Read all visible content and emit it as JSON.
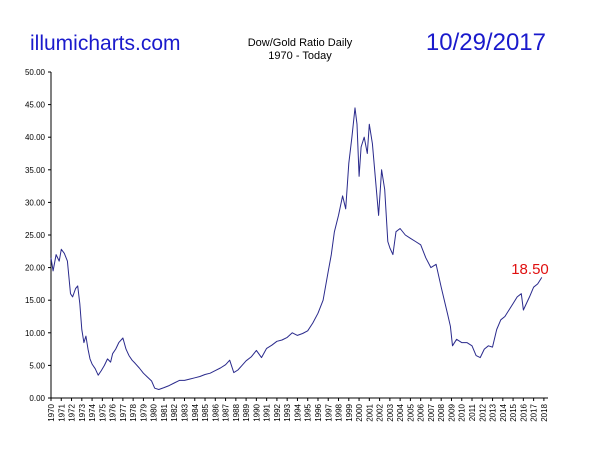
{
  "header": {
    "brand": "illumicharts.com",
    "date": "10/29/2017"
  },
  "chart_data": {
    "type": "line",
    "title": "Dow/Gold Ratio Daily",
    "subtitle": "1970 - Today",
    "xlabel": "",
    "ylabel": "",
    "xlim": [
      1970,
      2018.4
    ],
    "ylim": [
      0,
      50
    ],
    "grid": false,
    "y_ticks": [
      "0.00",
      "5.00",
      "10.00",
      "15.00",
      "20.00",
      "25.00",
      "30.00",
      "35.00",
      "40.00",
      "45.00",
      "50.00"
    ],
    "x_ticks": [
      "1970",
      "1971",
      "1972",
      "1973",
      "1974",
      "1975",
      "1976",
      "1977",
      "1978",
      "1979",
      "1980",
      "1981",
      "1982",
      "1983",
      "1984",
      "1985",
      "1986",
      "1987",
      "1988",
      "1989",
      "1990",
      "1991",
      "1992",
      "1993",
      "1994",
      "1995",
      "1996",
      "1997",
      "1998",
      "1999",
      "2000",
      "2001",
      "2002",
      "2003",
      "2004",
      "2005",
      "2006",
      "2007",
      "2008",
      "2009",
      "2010",
      "2011",
      "2012",
      "2013",
      "2014",
      "2015",
      "2016",
      "2017",
      "2018"
    ],
    "last_value_label": "18.50",
    "colors": {
      "series": "#2a2a8c",
      "annotation": "#e01010"
    },
    "series": [
      {
        "x": [
          1970.0,
          1970.2,
          1970.5,
          1970.8,
          1971.0,
          1971.3,
          1971.6,
          1971.9,
          1972.1,
          1972.4,
          1972.6,
          1972.8,
          1973.0,
          1973.2,
          1973.4,
          1973.6,
          1973.8,
          1974.0,
          1974.3,
          1974.6,
          1974.9,
          1975.2,
          1975.5,
          1975.8,
          1976.0,
          1976.3,
          1976.6,
          1977.0,
          1977.3,
          1977.6,
          1977.9,
          1978.2,
          1978.6,
          1979.0,
          1979.4,
          1979.8,
          1980.1,
          1980.5,
          1981.0,
          1981.5,
          1982.0,
          1982.5,
          1983.0,
          1983.5,
          1984.0,
          1984.5,
          1985.0,
          1985.5,
          1986.0,
          1986.5,
          1987.0,
          1987.4,
          1987.8,
          1988.2,
          1988.6,
          1989.0,
          1989.5,
          1990.0,
          1990.5,
          1991.0,
          1991.5,
          1992.0,
          1992.5,
          1993.0,
          1993.5,
          1994.0,
          1994.5,
          1995.0,
          1995.5,
          1996.0,
          1996.5,
          1997.0,
          1997.3,
          1997.6,
          1998.0,
          1998.4,
          1998.7,
          1999.0,
          1999.3,
          1999.6,
          1999.8,
          2000.0,
          2000.2,
          2000.5,
          2000.8,
          2001.0,
          2001.3,
          2001.6,
          2001.9,
          2002.2,
          2002.5,
          2002.8,
          2003.0,
          2003.3,
          2003.6,
          2004.0,
          2004.5,
          2005.0,
          2005.5,
          2006.0,
          2006.5,
          2007.0,
          2007.5,
          2008.0,
          2008.3,
          2008.6,
          2008.9,
          2009.1,
          2009.5,
          2010.0,
          2010.5,
          2011.0,
          2011.4,
          2011.8,
          2012.2,
          2012.6,
          2013.0,
          2013.4,
          2013.8,
          2014.2,
          2014.6,
          2015.0,
          2015.4,
          2015.8,
          2016.0,
          2016.3,
          2016.6,
          2017.0,
          2017.4,
          2017.8
        ],
        "values": [
          21.5,
          19.5,
          22.0,
          21.0,
          22.8,
          22.2,
          21.0,
          16.0,
          15.5,
          16.8,
          17.2,
          14.5,
          10.5,
          8.5,
          9.5,
          7.5,
          6.0,
          5.2,
          4.5,
          3.5,
          4.2,
          5.0,
          6.0,
          5.5,
          6.8,
          7.5,
          8.5,
          9.2,
          7.5,
          6.5,
          5.8,
          5.3,
          4.6,
          3.8,
          3.2,
          2.6,
          1.5,
          1.3,
          1.6,
          1.9,
          2.3,
          2.7,
          2.7,
          2.9,
          3.1,
          3.3,
          3.6,
          3.8,
          4.2,
          4.6,
          5.1,
          5.8,
          3.9,
          4.3,
          5.0,
          5.7,
          6.3,
          7.3,
          6.2,
          7.6,
          8.1,
          8.7,
          8.9,
          9.3,
          10.0,
          9.6,
          9.9,
          10.3,
          11.5,
          13.0,
          15.0,
          19.5,
          22.0,
          25.5,
          28.0,
          31.0,
          29.0,
          36.0,
          40.0,
          44.5,
          42.0,
          34.0,
          38.5,
          40.0,
          37.5,
          42.0,
          39.0,
          33.5,
          28.0,
          35.0,
          32.0,
          24.0,
          23.0,
          22.0,
          25.5,
          26.0,
          25.0,
          24.5,
          24.0,
          23.5,
          21.5,
          20.0,
          20.5,
          17.0,
          15.0,
          13.0,
          11.0,
          8.0,
          9.0,
          8.5,
          8.5,
          8.0,
          6.5,
          6.2,
          7.5,
          8.0,
          7.8,
          10.5,
          12.0,
          12.5,
          13.5,
          14.5,
          15.5,
          16.0,
          13.5,
          14.5,
          15.5,
          17.0,
          17.5,
          18.5
        ]
      }
    ]
  }
}
